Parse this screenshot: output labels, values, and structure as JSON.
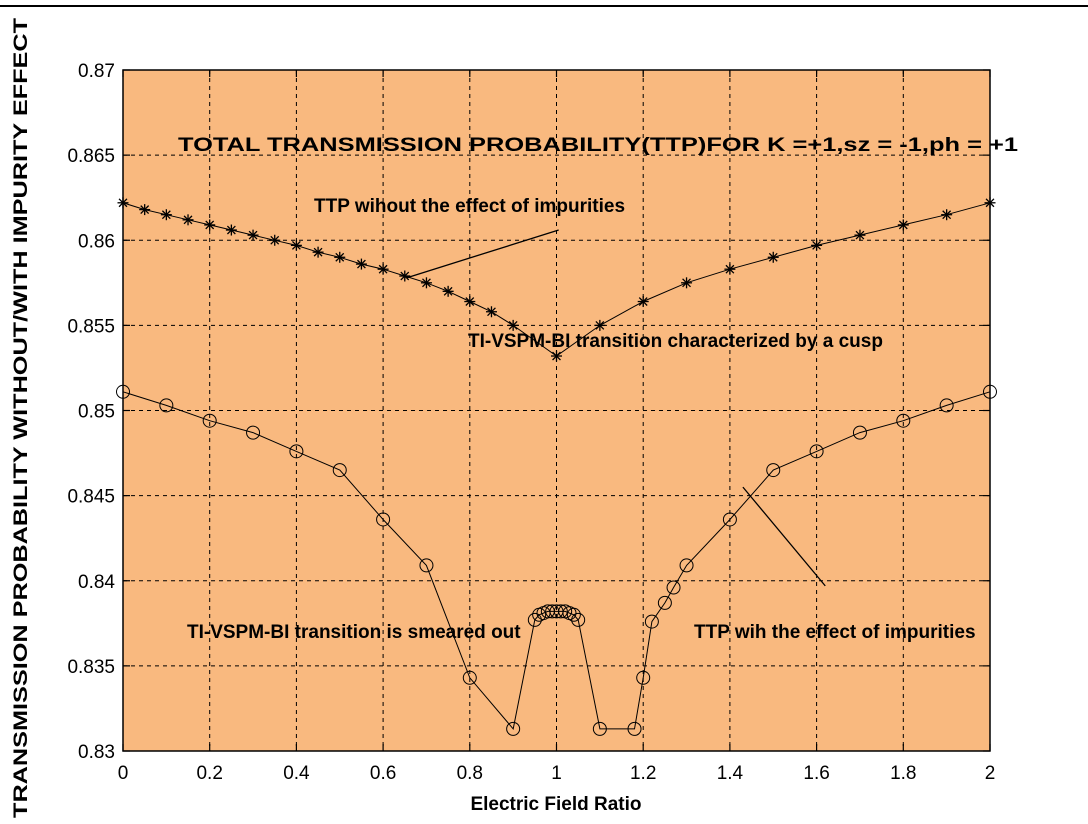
{
  "chart_data": {
    "type": "line",
    "title": "",
    "xlabel": "Electric Field Ratio",
    "ylabel": "TRANSMISSION PROBABILITY WITHOUT/WITH IMPURITY EFFECT",
    "xlim": [
      0,
      2
    ],
    "ylim": [
      0.83,
      0.87
    ],
    "xticks": [
      "0",
      "0.2",
      "0.4",
      "0.6",
      "0.8",
      "1",
      "1.2",
      "1.4",
      "1.6",
      "1.8",
      "2"
    ],
    "yticks": [
      "0.83",
      "0.835",
      "0.84",
      "0.845",
      "0.85",
      "0.855",
      "0.86",
      "0.865",
      "0.87"
    ],
    "grid": true,
    "background": "#f9b97f",
    "series": [
      {
        "marker": "asterisk",
        "color": "#000000",
        "x": [
          0,
          0.05,
          0.1,
          0.15,
          0.2,
          0.25,
          0.3,
          0.35,
          0.4,
          0.45,
          0.5,
          0.55,
          0.6,
          0.65,
          0.7,
          0.75,
          0.8,
          0.85,
          0.9,
          1.0,
          1.1,
          1.2,
          1.3,
          1.4,
          1.5,
          1.6,
          1.7,
          1.8,
          1.9,
          2.0
        ],
        "y": [
          0.8622,
          0.8618,
          0.8615,
          0.8612,
          0.8609,
          0.8606,
          0.8603,
          0.86,
          0.8597,
          0.8593,
          0.859,
          0.8586,
          0.8583,
          0.8579,
          0.8575,
          0.857,
          0.8564,
          0.8558,
          0.855,
          0.8532,
          0.855,
          0.8564,
          0.8575,
          0.8583,
          0.859,
          0.8597,
          0.8603,
          0.8609,
          0.8615,
          0.8622
        ]
      },
      {
        "marker": "circle",
        "color": "#000000",
        "x": [
          0,
          0.1,
          0.2,
          0.3,
          0.4,
          0.5,
          0.6,
          0.7,
          0.8,
          0.9,
          0.95,
          0.96,
          0.97,
          0.98,
          0.99,
          1.0,
          1.01,
          1.02,
          1.03,
          1.04,
          1.05,
          1.1,
          1.18,
          1.2,
          1.22,
          1.25,
          1.27,
          1.3,
          1.4,
          1.5,
          1.6,
          1.7,
          1.8,
          1.9,
          2.0
        ],
        "y": [
          0.8511,
          0.8503,
          0.8494,
          0.8487,
          0.8476,
          0.8465,
          0.8436,
          0.8409,
          0.8343,
          0.8313,
          0.8377,
          0.838,
          0.8381,
          0.8382,
          0.8382,
          0.8382,
          0.8382,
          0.8382,
          0.8381,
          0.838,
          0.8377,
          0.8313,
          0.8313,
          0.8343,
          0.8376,
          0.8387,
          0.8396,
          0.8409,
          0.8436,
          0.8465,
          0.8476,
          0.8487,
          0.8494,
          0.8503,
          0.8511
        ]
      }
    ],
    "annotations": [
      {
        "text": "TOTAL TRANSMISSION PROBABILITY(TTP)FOR K =+1,sz = -1,ph = +1"
      },
      {
        "text": "TTP wihout the effect of impurities"
      },
      {
        "text": "TI-VSPM-BI transition characterized by a cusp"
      },
      {
        "text": "TI-VSPM-BI transition is smeared out"
      },
      {
        "text": "TTP wih the effect of impurities"
      }
    ]
  }
}
